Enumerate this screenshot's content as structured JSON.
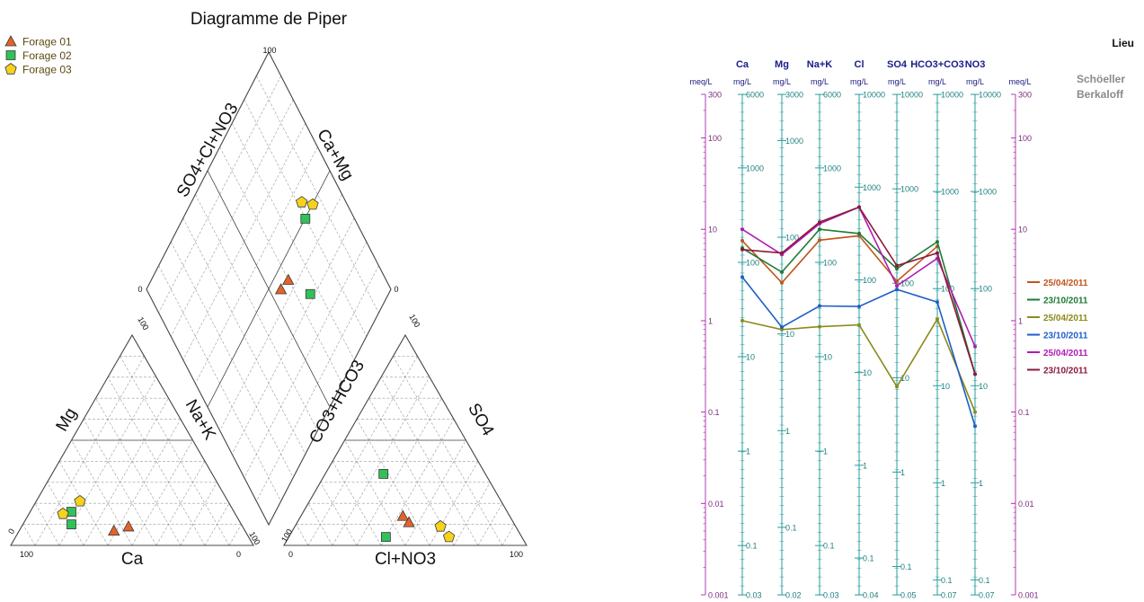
{
  "chart_data": [
    {
      "type": "scatter",
      "subtype": "piper",
      "title": "Diagramme de Piper",
      "legend_position": "top-left",
      "legend": [
        {
          "label": "Forage 01",
          "marker": "triangle",
          "color": "#e3632b"
        },
        {
          "label": "Forage 02",
          "marker": "square",
          "color": "#31c158"
        },
        {
          "label": "Forage 03",
          "marker": "pentagon",
          "color": "#f6d21e"
        }
      ],
      "cation_triangle": {
        "labels": {
          "left": "Mg",
          "right": "Na+K",
          "bottom": "Ca"
        },
        "ticks": {
          "apex": "100",
          "left_corner_top": "0",
          "left_corner_bottom": "100",
          "right_corner_bottom": "0",
          "right_corner_side": "100"
        },
        "points_percent_ca_mg": [
          {
            "well": "Forage 01",
            "ca": 54,
            "mg": 7
          },
          {
            "well": "Forage 01",
            "ca": 47,
            "mg": 9
          },
          {
            "well": "Forage 02",
            "ca": 67,
            "mg": 16
          },
          {
            "well": "Forage 02",
            "ca": 70,
            "mg": 10
          },
          {
            "well": "Forage 03",
            "ca": 61,
            "mg": 21
          },
          {
            "well": "Forage 03",
            "ca": 71,
            "mg": 15
          }
        ]
      },
      "anion_triangle": {
        "labels": {
          "left": "CO3+HCO3",
          "right": "SO4",
          "bottom": "Cl+NO3"
        },
        "ticks": {
          "apex": "100",
          "left_corner_top": "100",
          "left_corner_bottom": "0",
          "right_corner_bottom": "100"
        },
        "points_percent_so4_cl": [
          {
            "well": "Forage 01",
            "so4": 14,
            "cl": 42
          },
          {
            "well": "Forage 01",
            "so4": 11,
            "cl": 46
          },
          {
            "well": "Forage 02",
            "so4": 34,
            "cl": 24
          },
          {
            "well": "Forage 02",
            "so4": 4,
            "cl": 40
          },
          {
            "well": "Forage 03",
            "so4": 9,
            "cl": 60
          },
          {
            "well": "Forage 03",
            "so4": 4,
            "cl": 66
          }
        ]
      },
      "diamond": {
        "labels": {
          "upper_left": "SO4+Cl+NO3",
          "upper_right": "Ca+Mg"
        },
        "ticks": {
          "top": "100",
          "left": "0",
          "right": "0"
        },
        "points_percent_anion_cation": [
          {
            "well": "Forage 01",
            "so4_cl_no3": 44,
            "ca_mg": 60
          },
          {
            "well": "Forage 01",
            "so4_cl_no3": 45,
            "ca_mg": 55
          },
          {
            "well": "Forage 02",
            "so4_cl_no3": 50,
            "ca_mg": 80
          },
          {
            "well": "Forage 02",
            "so4_cl_no3": 32,
            "ca_mg": 66
          },
          {
            "well": "Forage 03",
            "so4_cl_no3": 50,
            "ca_mg": 86
          },
          {
            "well": "Forage 03",
            "so4_cl_no3": 55,
            "ca_mg": 82
          }
        ]
      }
    },
    {
      "type": "line",
      "subtype": "schoeller-berkaloff",
      "title": "Lieu",
      "subtitle_lines": [
        "Schöeller",
        "Berkaloff"
      ],
      "legend_position": "right",
      "yscale": "log",
      "ylim": [
        0.001,
        300
      ],
      "meq_ticks": [
        "300",
        "100",
        "10",
        "1",
        "0.1",
        "0.01",
        "0.001"
      ],
      "meq_unit": "meq/L",
      "categories": [
        "Ca",
        "Mg",
        "Na+K",
        "Cl",
        "SO4",
        "HCO3+CO3",
        "NO3"
      ],
      "units": [
        "mg/L",
        "mg/L",
        "mg/L",
        "mg/L",
        "mg/L",
        "mg/L",
        "mg/L"
      ],
      "axis_ticks": [
        [
          "6000",
          "1000",
          "100",
          "10",
          "1",
          "0.1",
          "0.03"
        ],
        [
          "3000",
          "1000",
          "100",
          "10",
          "1",
          "0.1",
          "0.02"
        ],
        [
          "6000",
          "1000",
          "100",
          "10",
          "1",
          "0.1",
          "0.03"
        ],
        [
          "10000",
          "1000",
          "100",
          "10",
          "1",
          "0.1",
          "0.04"
        ],
        [
          "10000",
          "1000",
          "100",
          "10",
          "1",
          "0.1",
          "0.05"
        ],
        [
          "10000",
          "1000",
          "100",
          "10",
          "1",
          "0.1",
          "0.07"
        ],
        [
          "10000",
          "1000",
          "100",
          "10",
          "1",
          "0.1",
          "0.07"
        ]
      ],
      "series": [
        {
          "name": "25/04/2011",
          "color": "#c0561b",
          "values": [
            7.5,
            2.6,
            7.6,
            8.5,
            2.7,
            6.5,
            null
          ]
        },
        {
          "name": "23/10/2011",
          "color": "#1e7a35",
          "values": [
            6.2,
            3.4,
            10,
            9,
            3.7,
            7.3,
            0.26
          ]
        },
        {
          "name": "25/04/2011",
          "color": "#8c8a1a",
          "values": [
            1,
            0.8,
            0.86,
            0.9,
            0.19,
            1.04,
            0.1
          ]
        },
        {
          "name": "23/10/2011",
          "color": "#1d5ec8",
          "values": [
            3,
            0.85,
            1.45,
            1.43,
            2.2,
            1.6,
            0.07
          ]
        },
        {
          "name": "25/04/2011",
          "color": "#b21ab3",
          "values": [
            10,
            5.3,
            11.5,
            17.5,
            2.4,
            4.8,
            0.52
          ]
        },
        {
          "name": "23/10/2011",
          "color": "#8b1a3a",
          "values": [
            6,
            5.5,
            12,
            17.5,
            4,
            5.5,
            0.26
          ]
        }
      ]
    }
  ]
}
